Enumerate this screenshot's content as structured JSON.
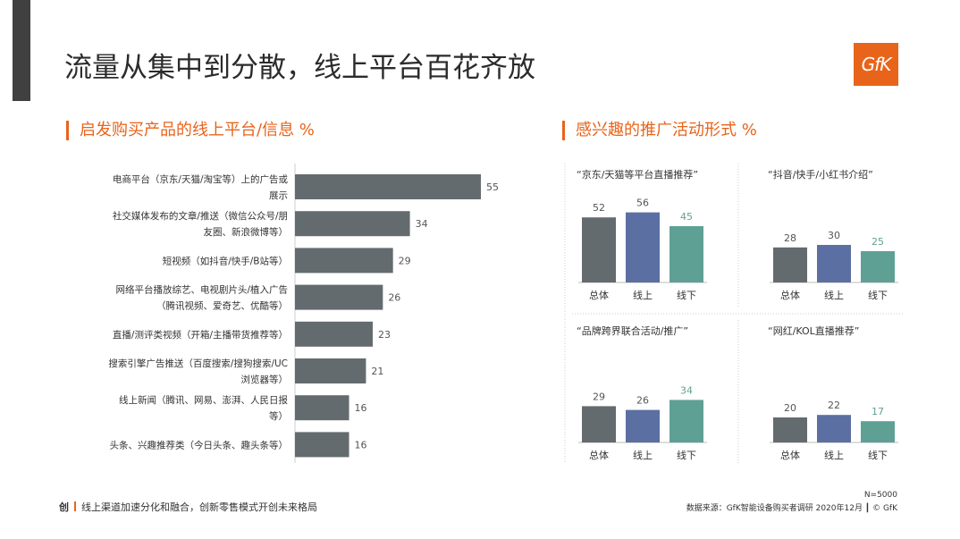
{
  "title": "流量从集中到分散，线上平台百花齐放",
  "logo_text": "GfK",
  "left_section_title": "启发购买产品的线上平台/信息 %",
  "right_section_title": "感兴趣的推广活动形式 %",
  "footer": {
    "icon_char": "创",
    "tagline": "线上渠道加速分化和融合，创新零售模式开创未来格局",
    "n": "N=5000",
    "source": "数据来源：GfK智能设备购买者调研 2020年12月 ┃ © GfK"
  },
  "colors": {
    "accent": "#e8641b",
    "bar_total": "#646b6f",
    "bar_online": "#5b6fa3",
    "bar_offline": "#5fa095",
    "hbar": "#646b6f"
  },
  "chart_data": [
    {
      "type": "bar",
      "orientation": "horizontal",
      "categories": [
        [
          "电商平台（京东/天猫/淘宝等）上的广告或",
          "展示"
        ],
        [
          "社交媒体发布的文章/推送（微信公众号/朋",
          "友圈、新浪微博等）"
        ],
        [
          "短视频（如抖音/快手/B站等）"
        ],
        [
          "网络平台播放综艺、电视剧片头/植入广告",
          "（腾讯视频、爱奇艺、优酷等）"
        ],
        [
          "直播/测评类视频（开箱/主播带货推荐等）"
        ],
        [
          "搜索引擎广告推送（百度搜索/搜狗搜索/UC",
          "浏览器等）"
        ],
        [
          "线上新闻（腾讯、网易、澎湃、人民日报",
          "等）"
        ],
        [
          "头条、兴趣推荐类（今日头条、趣头条等）"
        ]
      ],
      "values": [
        55,
        34,
        29,
        26,
        23,
        21,
        16,
        16
      ],
      "xlim": [
        0,
        55
      ]
    },
    {
      "type": "bar",
      "title": "“京东/天猫等平台直播推荐”",
      "categories": [
        "总体",
        "线上",
        "线下"
      ],
      "values": [
        52,
        56,
        45
      ]
    },
    {
      "type": "bar",
      "title": "“抖音/快手/小红书介绍”",
      "categories": [
        "总体",
        "线上",
        "线下"
      ],
      "values": [
        28,
        30,
        25
      ]
    },
    {
      "type": "bar",
      "title": "“品牌跨界联合活动/推广”",
      "categories": [
        "总体",
        "线上",
        "线下"
      ],
      "values": [
        29,
        26,
        34
      ]
    },
    {
      "type": "bar",
      "title": "“网红/KOL直播推荐”",
      "categories": [
        "总体",
        "线上",
        "线下"
      ],
      "values": [
        20,
        22,
        17
      ]
    }
  ]
}
